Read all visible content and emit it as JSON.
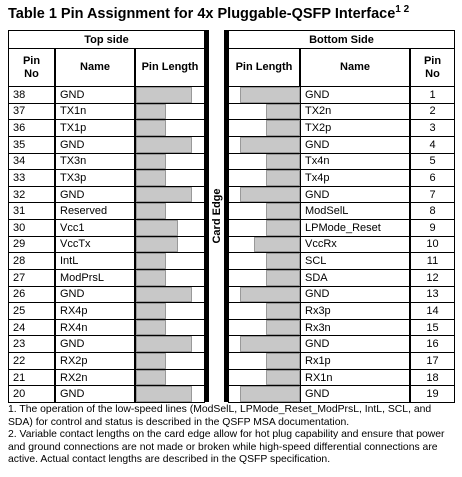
{
  "title": "Table 1  Pin Assignment for 4x Pluggable-QSFP Interface",
  "title_superscript": "1 2",
  "top_side": {
    "heading": "Top side",
    "columns": [
      "Pin No",
      "Name",
      "Pin Length"
    ],
    "rows": [
      [
        "38",
        "GND"
      ],
      [
        "37",
        "TX1n"
      ],
      [
        "36",
        "TX1p"
      ],
      [
        "35",
        "GND"
      ],
      [
        "34",
        "TX3n"
      ],
      [
        "33",
        "TX3p"
      ],
      [
        "32",
        "GND"
      ],
      [
        "31",
        "Reserved"
      ],
      [
        "30",
        "Vcc1"
      ],
      [
        "29",
        "VccTx"
      ],
      [
        "28",
        "IntL"
      ],
      [
        "27",
        "ModPrsL"
      ],
      [
        "26",
        "GND"
      ],
      [
        "25",
        "RX4p"
      ],
      [
        "24",
        "RX4n"
      ],
      [
        "23",
        "GND"
      ],
      [
        "22",
        "RX2p"
      ],
      [
        "21",
        "RX2n"
      ],
      [
        "20",
        "GND"
      ]
    ]
  },
  "bottom_side": {
    "heading": "Bottom Side",
    "columns": [
      "Pin Length",
      "Name",
      "Pin No"
    ],
    "rows": [
      [
        "1",
        "GND"
      ],
      [
        "2",
        "TX2n"
      ],
      [
        "3",
        "TX2p"
      ],
      [
        "4",
        "GND"
      ],
      [
        "5",
        "Tx4n"
      ],
      [
        "6",
        "Tx4p"
      ],
      [
        "7",
        "GND"
      ],
      [
        "8",
        "ModSelL"
      ],
      [
        "9",
        "LPMode_Reset"
      ],
      [
        "10",
        "VccRx"
      ],
      [
        "11",
        "SCL"
      ],
      [
        "12",
        "SDA"
      ],
      [
        "13",
        "GND"
      ],
      [
        "14",
        "Rx3p"
      ],
      [
        "15",
        "Rx3n"
      ],
      [
        "16",
        "GND"
      ],
      [
        "17",
        "Rx1p"
      ],
      [
        "18",
        "RX1n"
      ],
      [
        "19",
        "GND"
      ]
    ]
  },
  "card_edge": "Card Edge",
  "notes": [
    "1. The operation of the low-speed lines (ModSelL, LPMode_Reset_ModPrsL, IntL, SCL, and SDA) for control and status is described in the QSFP MSA documentation.",
    "2. Variable contact lengths on the card edge allow for hot plug capability and ensure that power and ground connections are not made or broken while high-speed differential connections are active. Actual contact lengths are described in the QSFP specification."
  ]
}
